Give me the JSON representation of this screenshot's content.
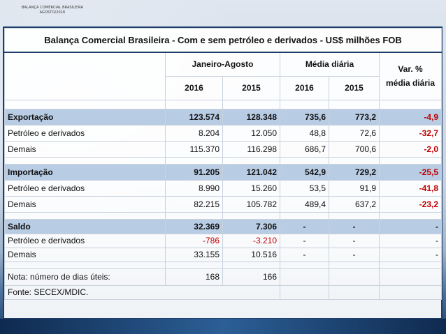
{
  "header_small": [
    "BALANÇA COMERCIAL BRASILEIRA",
    "AGOSTO/2016"
  ],
  "table": {
    "title": "Balança Comercial Brasileira - Com e sem petróleo e derivados - US$ milhões FOB",
    "group_headers": [
      "Janeiro-Agosto",
      "Média diária"
    ],
    "var_header": [
      "Var. %",
      "média diária"
    ],
    "year_headers": [
      "2016",
      "2015",
      "2016",
      "2015"
    ],
    "rows": [
      {
        "label": "Exportação",
        "values": [
          "123.574",
          "128.348",
          "735,6",
          "773,2",
          "-4,9"
        ]
      },
      {
        "label": "Petróleo e derivados",
        "values": [
          "8.204",
          "12.050",
          "48,8",
          "72,6",
          "-32,7"
        ]
      },
      {
        "label": "Demais",
        "values": [
          "115.370",
          "116.298",
          "686,7",
          "700,6",
          "-2,0"
        ]
      },
      {
        "label": "Importação",
        "values": [
          "91.205",
          "121.042",
          "542,9",
          "729,2",
          "-25,5"
        ]
      },
      {
        "label": "Petróleo e derivados",
        "values": [
          "8.990",
          "15.260",
          "53,5",
          "91,9",
          "-41,8"
        ]
      },
      {
        "label": "Demais",
        "values": [
          "82.215",
          "105.782",
          "489,4",
          "637,2",
          "-23,2"
        ]
      },
      {
        "label": "Saldo",
        "values": [
          "32.369",
          "7.306",
          "-",
          "-",
          "-"
        ]
      },
      {
        "label": "Petróleo e derivados",
        "values": [
          "-786",
          "-3.210",
          "-",
          "-",
          "-"
        ]
      },
      {
        "label": "Demais",
        "values": [
          "33.155",
          "10.516",
          "-",
          "-",
          "-"
        ]
      }
    ],
    "note_label": "Nota: número de dias úteis:",
    "note_values": [
      "168",
      "166"
    ],
    "source": "Fonte: SECEX/MDIC."
  },
  "colors": {
    "highlight_row": "#b8cce4",
    "negative": "#c00000",
    "border": "#1f3d6b"
  }
}
